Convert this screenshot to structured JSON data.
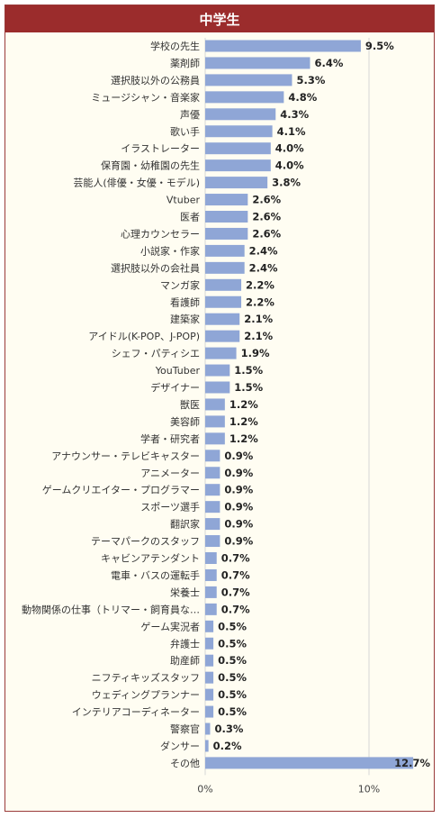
{
  "header": {
    "title": "中学生"
  },
  "chart_data": {
    "type": "bar",
    "orientation": "horizontal",
    "title": "中学生",
    "categories": [
      "学校の先生",
      "薬剤師",
      "選択肢以外の公務員",
      "ミュージシャン・音楽家",
      "声優",
      "歌い手",
      "イラストレーター",
      "保育園・幼稚園の先生",
      "芸能人(俳優・女優・モデル)",
      "Vtuber",
      "医者",
      "心理カウンセラー",
      "小説家・作家",
      "選択肢以外の会社員",
      "マンガ家",
      "看護師",
      "建築家",
      "アイドル(K-POP、J-POP)",
      "シェフ・パティシエ",
      "YouTuber",
      "デザイナー",
      "獣医",
      "美容師",
      "学者・研究者",
      "アナウンサー・テレビキャスター",
      "アニメーター",
      "ゲームクリエイター・プログラマー",
      "スポーツ選手",
      "翻訳家",
      "テーマパークのスタッフ",
      "キャビンアテンダント",
      "電車・バスの運転手",
      "栄養士",
      "動物関係の仕事（トリマー・飼育員な…",
      "ゲーム実況者",
      "弁護士",
      "助産師",
      "ニフティキッズスタッフ",
      "ウェディングプランナー",
      "インテリアコーディネーター",
      "警察官",
      "ダンサー",
      "その他"
    ],
    "values": [
      9.5,
      6.4,
      5.3,
      4.8,
      4.3,
      4.1,
      4.0,
      4.0,
      3.8,
      2.6,
      2.6,
      2.6,
      2.4,
      2.4,
      2.2,
      2.2,
      2.1,
      2.1,
      1.9,
      1.5,
      1.5,
      1.2,
      1.2,
      1.2,
      0.9,
      0.9,
      0.9,
      0.9,
      0.9,
      0.9,
      0.7,
      0.7,
      0.7,
      0.7,
      0.5,
      0.5,
      0.5,
      0.5,
      0.5,
      0.5,
      0.3,
      0.2,
      12.7
    ],
    "value_labels": [
      "9.5%",
      "6.4%",
      "5.3%",
      "4.8%",
      "4.3%",
      "4.1%",
      "4.0%",
      "4.0%",
      "3.8%",
      "2.6%",
      "2.6%",
      "2.6%",
      "2.4%",
      "2.4%",
      "2.2%",
      "2.2%",
      "2.1%",
      "2.1%",
      "1.9%",
      "1.5%",
      "1.5%",
      "1.2%",
      "1.2%",
      "1.2%",
      "0.9%",
      "0.9%",
      "0.9%",
      "0.9%",
      "0.9%",
      "0.9%",
      "0.7%",
      "0.7%",
      "0.7%",
      "0.7%",
      "0.5%",
      "0.5%",
      "0.5%",
      "0.5%",
      "0.5%",
      "0.5%",
      "0.3%",
      "0.2%",
      "12.7%"
    ],
    "xlim": [
      0,
      12.7
    ],
    "x_ticks": [
      0,
      10
    ],
    "x_tick_labels": [
      "0%",
      "10%"
    ],
    "grid": true,
    "colors": {
      "bar": "#8fa6d6",
      "grid": "#d6d6d6",
      "header": "#9b2c2c",
      "background": "#fffdf2"
    }
  }
}
